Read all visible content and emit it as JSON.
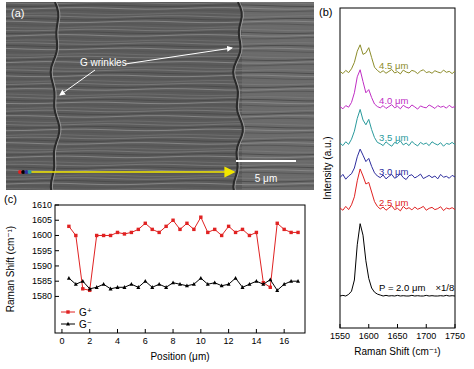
{
  "image_panel": {
    "label": "(a)",
    "annotation": "G wrinkles",
    "scale_bar": "5 μm"
  },
  "chart_data": [
    {
      "type": "line",
      "panel_label": "(b)",
      "x_label": "Raman Shift (cm⁻¹)",
      "y_label": "Intensity (a.u.)",
      "annotations": [
        "×1/8"
      ],
      "x": [
        1550,
        1555,
        1560,
        1565,
        1570,
        1575,
        1580,
        1585,
        1590,
        1595,
        1600,
        1605,
        1610,
        1615,
        1620,
        1625,
        1630,
        1635,
        1640,
        1645,
        1650,
        1655,
        1660,
        1665,
        1670,
        1675,
        1680,
        1685,
        1690,
        1695,
        1700,
        1705,
        1710,
        1715,
        1720,
        1725,
        1730,
        1735,
        1740,
        1745,
        1750
      ],
      "series": [
        {
          "name": "4.5 μm",
          "color": "#8c8c2a",
          "values": [
            8.02,
            7.95,
            8.05,
            7.98,
            8.1,
            8.3,
            8.65,
            8.85,
            8.55,
            8.6,
            8.76,
            8.45,
            8.15,
            8.05,
            7.98,
            8.04,
            7.96,
            8.02,
            8.08,
            7.97,
            8.01,
            7.94,
            8.06,
            8.0,
            7.97,
            8.05,
            8.02,
            7.95,
            8.03,
            8.07,
            7.98,
            8.01,
            7.96,
            8.04,
            8.0,
            7.97,
            8.06,
            7.99,
            8.02,
            7.95,
            8.03
          ]
        },
        {
          "name": "4.0 μm",
          "color": "#c02ec4",
          "values": [
            6.92,
            6.85,
            6.95,
            6.9,
            7.05,
            7.35,
            7.85,
            8.07,
            7.7,
            7.35,
            7.45,
            7.2,
            7.0,
            6.92,
            6.88,
            6.95,
            6.86,
            6.92,
            6.98,
            6.88,
            6.93,
            6.85,
            6.96,
            6.9,
            6.87,
            6.97,
            6.91,
            6.84,
            6.94,
            6.9,
            6.88,
            6.97,
            6.92,
            6.86,
            6.95,
            6.9,
            6.93,
            6.87,
            6.96,
            6.89,
            6.92
          ]
        },
        {
          "name": "3.5 μm",
          "color": "#2a9a9c",
          "values": [
            5.78,
            5.7,
            5.82,
            5.74,
            5.9,
            6.15,
            6.55,
            6.83,
            6.5,
            6.35,
            6.52,
            6.2,
            5.95,
            5.8,
            5.76,
            5.7,
            5.82,
            5.74,
            5.68,
            5.8,
            5.76,
            5.85,
            5.72,
            5.78,
            5.7,
            5.83,
            5.75,
            5.69,
            5.8,
            5.74,
            5.78,
            5.7,
            5.82,
            5.76,
            5.72,
            5.79,
            5.68,
            5.77,
            5.74,
            5.8,
            5.73
          ]
        },
        {
          "name": "3.0 μm",
          "color": "#2e2e9e",
          "values": [
            4.7,
            4.8,
            4.65,
            4.75,
            4.82,
            5.0,
            5.35,
            5.59,
            5.4,
            5.2,
            5.3,
            5.05,
            4.85,
            4.75,
            4.7,
            4.78,
            4.66,
            4.74,
            4.8,
            4.68,
            4.73,
            4.82,
            4.7,
            4.64,
            4.76,
            4.79,
            4.69,
            4.74,
            4.81,
            4.67,
            4.72,
            4.77,
            4.7,
            4.75,
            4.66,
            4.8,
            4.71,
            4.74,
            4.68,
            4.77,
            4.72
          ]
        },
        {
          "name": "2.5 μm",
          "color": "#e02222",
          "values": [
            3.75,
            3.68,
            3.8,
            3.7,
            3.85,
            4.1,
            4.6,
            4.97,
            4.75,
            4.5,
            4.55,
            4.25,
            3.95,
            3.8,
            3.72,
            3.78,
            3.68,
            3.75,
            3.82,
            3.7,
            3.74,
            3.66,
            3.8,
            3.72,
            3.76,
            3.69,
            3.78,
            3.71,
            3.75,
            3.8,
            3.68,
            3.74,
            3.77,
            3.7,
            3.73,
            3.79,
            3.67,
            3.75,
            3.72,
            3.76,
            3.7
          ]
        },
        {
          "name": "P = 2.0 μm",
          "color": "#000000",
          "values": [
            1.0,
            1.02,
            1.0,
            1.05,
            1.15,
            1.5,
            2.6,
            3.26,
            2.9,
            2.1,
            1.55,
            1.25,
            1.12,
            1.06,
            1.03,
            1.0,
            1.02,
            1.0,
            1.01,
            1.0,
            1.02,
            1.0,
            1.01,
            1.0,
            1.0,
            1.02,
            1.0,
            1.01,
            1.0,
            1.0,
            1.02,
            1.0,
            1.01,
            1.0,
            1.0,
            1.01,
            1.0,
            1.02,
            1.0,
            1.01,
            1.0
          ]
        }
      ],
      "xlim": [
        1550,
        1750
      ],
      "xticks": [
        1550,
        1600,
        1650,
        1700,
        1750
      ],
      "ylim": [
        0,
        10
      ],
      "tick_labels": "x"
    },
    {
      "type": "line",
      "panel_label": "(c)",
      "x_label": "Position (μm)",
      "y_label": "Raman Shift (cm⁻¹)",
      "x": [
        0.5,
        1,
        1.5,
        2,
        2.5,
        3,
        3.5,
        4,
        4.5,
        5,
        5.5,
        6,
        6.5,
        7,
        7.5,
        8,
        8.5,
        9,
        9.5,
        10,
        10.5,
        11,
        11.5,
        12,
        12.5,
        13,
        13.5,
        14,
        14.5,
        15,
        15.5,
        16,
        16.5,
        17
      ],
      "series": [
        {
          "name": "G⁺",
          "color": "#e02222",
          "marker": "square",
          "values": [
            1603,
            1600,
            1582.5,
            1582,
            1600,
            1600,
            1600,
            1601,
            1600.5,
            1601,
            1602,
            1604,
            1602,
            1601,
            1603,
            1605,
            1602,
            1604,
            1602,
            1606,
            1601,
            1602,
            1600,
            1603,
            1601,
            1602,
            1600,
            1601,
            1584.5,
            1583,
            1604,
            1602,
            1601,
            1601
          ]
        },
        {
          "name": "G⁻",
          "color": "#000000",
          "marker": "triangle",
          "values": [
            1586,
            1584,
            1585,
            1582.5,
            1583,
            1584,
            1582.5,
            1583,
            1583,
            1584,
            1583,
            1585,
            1583,
            1584,
            1583,
            1584.5,
            1584,
            1583.5,
            1584,
            1586,
            1584,
            1584.5,
            1583.5,
            1584,
            1586,
            1583,
            1584,
            1585,
            1584,
            1585.5,
            1582,
            1584,
            1585,
            1585
          ]
        }
      ],
      "xlim": [
        -0.5,
        17.5
      ],
      "xticks": [
        0,
        2,
        4,
        6,
        8,
        10,
        12,
        14,
        16
      ],
      "ylim": [
        1568,
        1610
      ],
      "yticks": [
        1580,
        1585,
        1590,
        1595,
        1600,
        1605,
        1610
      ],
      "legend": "lower left"
    }
  ]
}
